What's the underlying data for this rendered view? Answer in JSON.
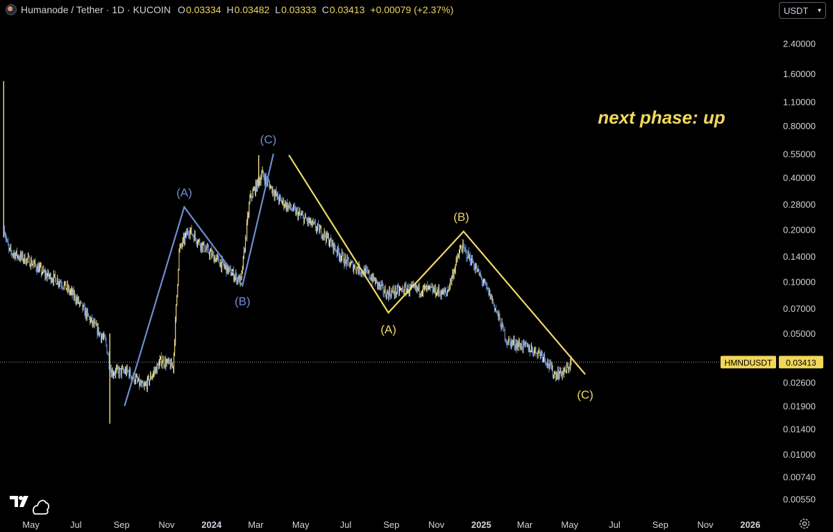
{
  "header": {
    "symbol_title": "Humanode / Tether · 1D · KUCOIN",
    "o_label": "O",
    "o_value": "0.03334",
    "h_label": "H",
    "h_value": "0.03482",
    "l_label": "L",
    "l_value": "0.03333",
    "c_label": "C",
    "c_value": "0.03413",
    "change": "+0.00079 (+2.37%)"
  },
  "currency_select": {
    "value": "USDT"
  },
  "icons": {
    "symbol": "humanode-logo-icon",
    "logo": "tradingview-logo-icon",
    "settings": "gear-icon",
    "dropdown": "chevron-down-icon"
  },
  "colors": {
    "background": "#000000",
    "candle_up": "#f4e38a",
    "candle_down": "#6b8fd4",
    "text": "#d1d4dc",
    "accent_yellow": "#f0d75a",
    "wave_blue": "#6e8ed0",
    "wave_yellow": "#efdb68"
  },
  "chart_data": {
    "type": "candlestick",
    "title": "Humanode / Tether · 1D · KUCOIN",
    "yscale": "log",
    "ylim": [
      0.0045,
      3.3
    ],
    "xlim": [
      "2023-03-20",
      "2026-02-05"
    ],
    "y_ticks": [
      2.4,
      1.6,
      1.1,
      0.8,
      0.55,
      0.4,
      0.28,
      0.2,
      0.14,
      0.1,
      0.07,
      0.05,
      0.026,
      0.019,
      0.014,
      0.01,
      0.0074,
      0.0055
    ],
    "y_tick_labels": [
      "2.40000",
      "1.60000",
      "1.10000",
      "0.80000",
      "0.55000",
      "0.40000",
      "0.28000",
      "0.20000",
      "0.14000",
      "0.10000",
      "0.07000",
      "0.05000",
      "0.02600",
      "0.01900",
      "0.01400",
      "0.01000",
      "0.00740",
      "0.00550"
    ],
    "x_ticks": [
      {
        "date": "2023-05-01",
        "label": "May",
        "bold": false
      },
      {
        "date": "2023-07-01",
        "label": "Jul",
        "bold": false
      },
      {
        "date": "2023-09-01",
        "label": "Sep",
        "bold": false
      },
      {
        "date": "2023-11-01",
        "label": "Nov",
        "bold": false
      },
      {
        "date": "2024-01-01",
        "label": "2024",
        "bold": true
      },
      {
        "date": "2024-03-01",
        "label": "Mar",
        "bold": false
      },
      {
        "date": "2024-05-01",
        "label": "May",
        "bold": false
      },
      {
        "date": "2024-07-01",
        "label": "Jul",
        "bold": false
      },
      {
        "date": "2024-09-01",
        "label": "Sep",
        "bold": false
      },
      {
        "date": "2024-11-01",
        "label": "Nov",
        "bold": false
      },
      {
        "date": "2025-01-01",
        "label": "2025",
        "bold": true
      },
      {
        "date": "2025-03-01",
        "label": "Mar",
        "bold": false
      },
      {
        "date": "2025-05-01",
        "label": "May",
        "bold": false
      },
      {
        "date": "2025-07-01",
        "label": "Jul",
        "bold": false
      },
      {
        "date": "2025-09-01",
        "label": "Sep",
        "bold": false
      },
      {
        "date": "2025-11-01",
        "label": "Nov",
        "bold": false
      },
      {
        "date": "2026-01-01",
        "label": "2026",
        "bold": true
      }
    ],
    "price_path": [
      [
        "2023-03-26",
        0.2
      ],
      [
        "2023-04-01",
        0.15
      ],
      [
        "2023-04-15",
        0.14
      ],
      [
        "2023-05-01",
        0.13
      ],
      [
        "2023-05-20",
        0.11
      ],
      [
        "2023-06-10",
        0.1
      ],
      [
        "2023-07-01",
        0.08
      ],
      [
        "2023-07-20",
        0.06
      ],
      [
        "2023-08-10",
        0.045
      ],
      [
        "2023-08-18",
        0.03
      ],
      [
        "2023-09-10",
        0.03
      ],
      [
        "2023-10-01",
        0.024
      ],
      [
        "2023-10-25",
        0.035
      ],
      [
        "2023-11-10",
        0.032
      ],
      [
        "2023-11-18",
        0.15
      ],
      [
        "2023-12-01",
        0.2
      ],
      [
        "2023-12-20",
        0.16
      ],
      [
        "2024-01-20",
        0.12
      ],
      [
        "2024-02-10",
        0.1
      ],
      [
        "2024-02-22",
        0.3
      ],
      [
        "2024-03-10",
        0.42
      ],
      [
        "2024-04-01",
        0.3
      ],
      [
        "2024-05-01",
        0.24
      ],
      [
        "2024-06-01",
        0.19
      ],
      [
        "2024-07-01",
        0.13
      ],
      [
        "2024-08-01",
        0.11
      ],
      [
        "2024-08-25",
        0.085
      ],
      [
        "2024-09-20",
        0.09
      ],
      [
        "2024-10-20",
        0.09
      ],
      [
        "2024-11-15",
        0.085
      ],
      [
        "2024-12-05",
        0.16
      ],
      [
        "2024-12-20",
        0.13
      ],
      [
        "2025-01-15",
        0.08
      ],
      [
        "2025-02-05",
        0.045
      ],
      [
        "2025-03-01",
        0.042
      ],
      [
        "2025-03-25",
        0.038
      ],
      [
        "2025-04-10",
        0.029
      ],
      [
        "2025-04-25",
        0.03
      ],
      [
        "2025-05-03",
        0.0341
      ]
    ],
    "spikes": [
      {
        "date": "2023-03-25",
        "low": 0.18,
        "high": 1.45
      },
      {
        "date": "2023-08-16",
        "low": 0.015,
        "high": 0.05
      },
      {
        "date": "2024-03-05",
        "low": 0.35,
        "high": 0.54
      }
    ],
    "last_price": 0.03413,
    "last_price_label": "0.03413",
    "price_line_symbol": "HMNDUSDT",
    "waves": [
      {
        "name": "blue-wave",
        "color": "#6e8ed0",
        "points": [
          [
            "2023-09-05",
            0.019
          ],
          [
            "2023-11-25",
            0.27
          ],
          [
            "2024-02-12",
            0.095
          ],
          [
            "2024-03-25",
            0.55
          ]
        ],
        "labels": [
          {
            "text": "(A)",
            "date": "2023-11-25",
            "price": 0.31,
            "pos": "above"
          },
          {
            "text": "(B)",
            "date": "2024-02-12",
            "price": 0.08,
            "pos": "below"
          },
          {
            "text": "(C)",
            "date": "2024-03-18",
            "price": 0.63,
            "pos": "above"
          }
        ]
      },
      {
        "name": "yellow-wave",
        "color": "#efdb68",
        "points": [
          [
            "2024-04-15",
            0.54
          ],
          [
            "2024-08-28",
            0.066
          ],
          [
            "2024-12-08",
            0.195
          ],
          [
            "2025-05-22",
            0.029
          ]
        ],
        "labels": [
          {
            "text": "(A)",
            "date": "2024-08-28",
            "price": 0.055,
            "pos": "below"
          },
          {
            "text": "(B)",
            "date": "2024-12-05",
            "price": 0.225,
            "pos": "above"
          },
          {
            "text": "(C)",
            "date": "2025-05-22",
            "price": 0.023,
            "pos": "below"
          }
        ]
      }
    ],
    "annotation": "next phase: up"
  }
}
